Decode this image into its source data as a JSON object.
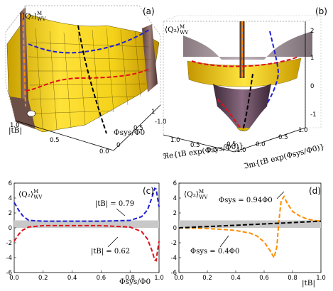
{
  "panel_labels": [
    "(a)",
    "(b)",
    "(c)",
    "(d)"
  ],
  "ylabel_q2": "⟨Q₂⟩",
  "ylabel_sup": "M",
  "ylabel_sub": "WV",
  "panel_a": {
    "x_axis_label": "Φsys/Φ0",
    "y_axis_label": "|tB|",
    "x_ticks": [
      "0",
      "0.5",
      "1"
    ],
    "tB_ticks": [
      "1.0",
      "0.5",
      "0.0"
    ],
    "z_ticks": [
      "1.0",
      "0.5",
      "0.0",
      "-0.5",
      "-1.0"
    ]
  },
  "panel_b": {
    "x_axis_label": "ℜe{tB exp(Φsys/Φ0)}",
    "y_axis_label": "ℑm{tB exp(Φsys/Φ0)}",
    "z_ticks": [
      "2",
      "1",
      "0",
      "-1"
    ],
    "x_ticks": [
      "1.0",
      "0.5",
      "0.0",
      "-0.5",
      "-1.0"
    ],
    "y_ticks": [
      "0.0",
      "0.5",
      "1.0"
    ]
  },
  "chart_data": [
    {
      "type": "line",
      "panel": "(c)",
      "xlabel": "Φsys/Φ0",
      "ylabel": "⟨Q₂⟩ WV M",
      "xlim": [
        0,
        1
      ],
      "ylim": [
        -6,
        6
      ],
      "x_ticks": [
        "0.0",
        "0.2",
        "0.4",
        "0.6",
        "0.8",
        "1.0"
      ],
      "y_ticks": [
        "6",
        "4",
        "2",
        "0",
        "-2",
        "-4",
        "-6"
      ],
      "band": [
        0,
        1
      ],
      "series": [
        {
          "name": "|tB| = 0.79",
          "color": "#1f1fd6",
          "x": [
            0.0,
            0.03,
            0.06,
            0.1,
            0.2,
            0.4,
            0.6,
            0.8,
            0.88,
            0.92,
            0.95,
            0.97,
            0.98,
            0.99,
            1.0
          ],
          "y": [
            3.4,
            2.4,
            1.6,
            1.0,
            0.9,
            0.9,
            0.9,
            1.0,
            1.5,
            2.4,
            4.0,
            5.3,
            5.2,
            4.0,
            2.8
          ]
        },
        {
          "name": "|tB| = 0.62",
          "color": "#e0101a",
          "x": [
            0.0,
            0.03,
            0.06,
            0.1,
            0.2,
            0.4,
            0.6,
            0.8,
            0.88,
            0.92,
            0.95,
            0.97,
            0.98,
            0.99,
            1.0
          ],
          "y": [
            -1.8,
            -0.9,
            -0.3,
            0.1,
            0.3,
            0.3,
            0.3,
            0.1,
            -0.5,
            -1.5,
            -3.0,
            -4.3,
            -4.4,
            -3.0,
            -1.8
          ]
        }
      ],
      "annotations": [
        "|tB| = 0.79",
        "|tB| = 0.62"
      ]
    },
    {
      "type": "line",
      "panel": "(d)",
      "xlabel": "|tB|",
      "ylabel": "⟨Q₂⟩ WV M",
      "xlim": [
        0,
        1
      ],
      "ylim": [
        -6,
        6
      ],
      "x_ticks": [
        "0.0",
        "0.2",
        "0.4",
        "0.6",
        "0.8",
        "1.0"
      ],
      "y_ticks": [
        "6",
        "4",
        "2",
        "0",
        "-2",
        "-4",
        "-6"
      ],
      "band": [
        0,
        1
      ],
      "series": [
        {
          "name": "Φsys = 0.94Φ0",
          "color": "#ff8c00",
          "x": [
            0.0,
            0.1,
            0.2,
            0.3,
            0.4,
            0.5,
            0.55,
            0.6,
            0.64,
            0.67,
            0.69,
            0.7,
            0.71,
            0.72,
            0.74,
            0.76,
            0.8,
            0.85,
            0.9,
            0.95,
            1.0
          ],
          "y": [
            0.0,
            -0.05,
            -0.1,
            -0.2,
            -0.35,
            -0.7,
            -1.1,
            -1.9,
            -3.0,
            -4.0,
            -2.5,
            0.0,
            2.0,
            3.6,
            4.2,
            3.4,
            2.2,
            1.6,
            1.2,
            1.0,
            0.9
          ]
        },
        {
          "name": "Φsys = 0.4Φ0",
          "color": "#000000",
          "x": [
            0.0,
            0.2,
            0.4,
            0.6,
            0.8,
            1.0
          ],
          "y": [
            0.0,
            0.17,
            0.34,
            0.52,
            0.7,
            0.9
          ]
        }
      ],
      "annotations": [
        "Φsys = 0.94Φ0",
        "Φsys = 0.4Φ0"
      ]
    }
  ]
}
